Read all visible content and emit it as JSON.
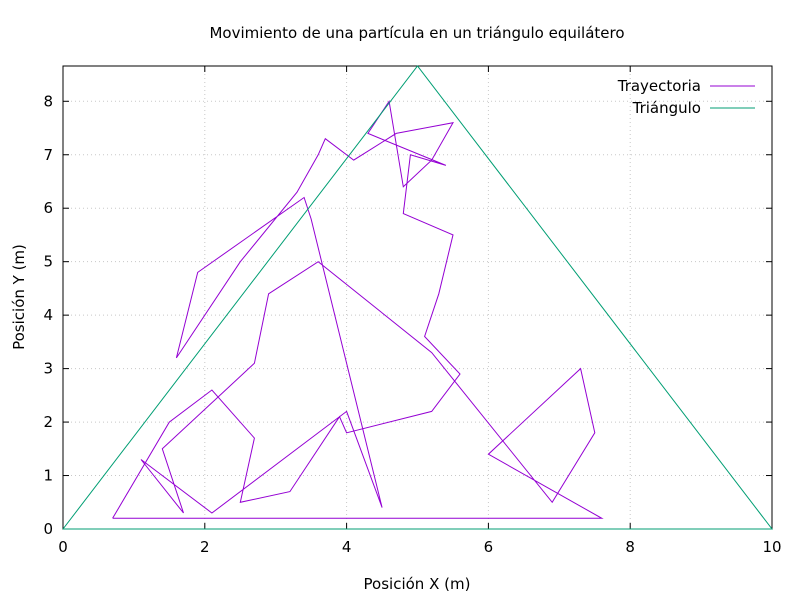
{
  "chart_data": {
    "type": "line",
    "title": "Movimiento de una partícula en un triángulo equilátero",
    "xlabel": "Posición X (m)",
    "ylabel": "Posición Y (m)",
    "xlim": [
      0,
      10
    ],
    "ylim": [
      0,
      8.66
    ],
    "x_ticks": [
      0,
      2,
      4,
      6,
      8,
      10
    ],
    "y_ticks": [
      0,
      1,
      2,
      3,
      4,
      5,
      6,
      7,
      8
    ],
    "x_tick_labels": [
      "0",
      "2",
      "4",
      "6",
      "8",
      "10"
    ],
    "y_tick_labels": [
      "0",
      "1",
      "2",
      "3",
      "4",
      "5",
      "6",
      "7",
      "8"
    ],
    "grid": true,
    "legend_position": "top-right",
    "series": [
      {
        "name": "Trayectoria",
        "color": "#9400d3",
        "x": [
          0.7,
          7.6,
          6.0,
          7.3,
          7.5,
          6.9,
          5.2,
          3.6,
          2.9,
          2.7,
          1.4,
          1.7,
          1.1,
          2.1,
          4.0,
          4.5,
          3.5,
          3.4,
          1.9,
          1.6,
          2.5,
          3.3,
          3.6,
          3.7,
          4.1,
          4.7,
          5.5,
          5.2,
          4.8,
          4.6,
          4.3,
          5.4,
          4.9,
          4.8,
          5.5,
          5.3,
          5.1,
          5.6,
          5.2,
          4.0,
          3.9,
          3.2,
          2.5,
          2.7,
          2.1,
          1.5,
          0.7
        ],
        "y": [
          0.2,
          0.2,
          1.4,
          3.0,
          1.8,
          0.5,
          3.3,
          5.0,
          4.4,
          3.1,
          1.5,
          0.3,
          1.3,
          0.3,
          2.2,
          0.4,
          5.8,
          6.2,
          4.8,
          3.2,
          5.0,
          6.3,
          7.0,
          7.3,
          6.9,
          7.4,
          7.6,
          6.9,
          6.4,
          8.0,
          7.4,
          6.8,
          7.0,
          5.9,
          5.5,
          4.4,
          3.6,
          2.9,
          2.2,
          1.8,
          2.1,
          0.7,
          0.5,
          1.7,
          2.6,
          2.0,
          0.2
        ]
      },
      {
        "name": "Triángulo",
        "color": "#009e73",
        "x": [
          0,
          5,
          10,
          0
        ],
        "y": [
          0,
          8.66,
          0,
          0
        ]
      }
    ]
  }
}
